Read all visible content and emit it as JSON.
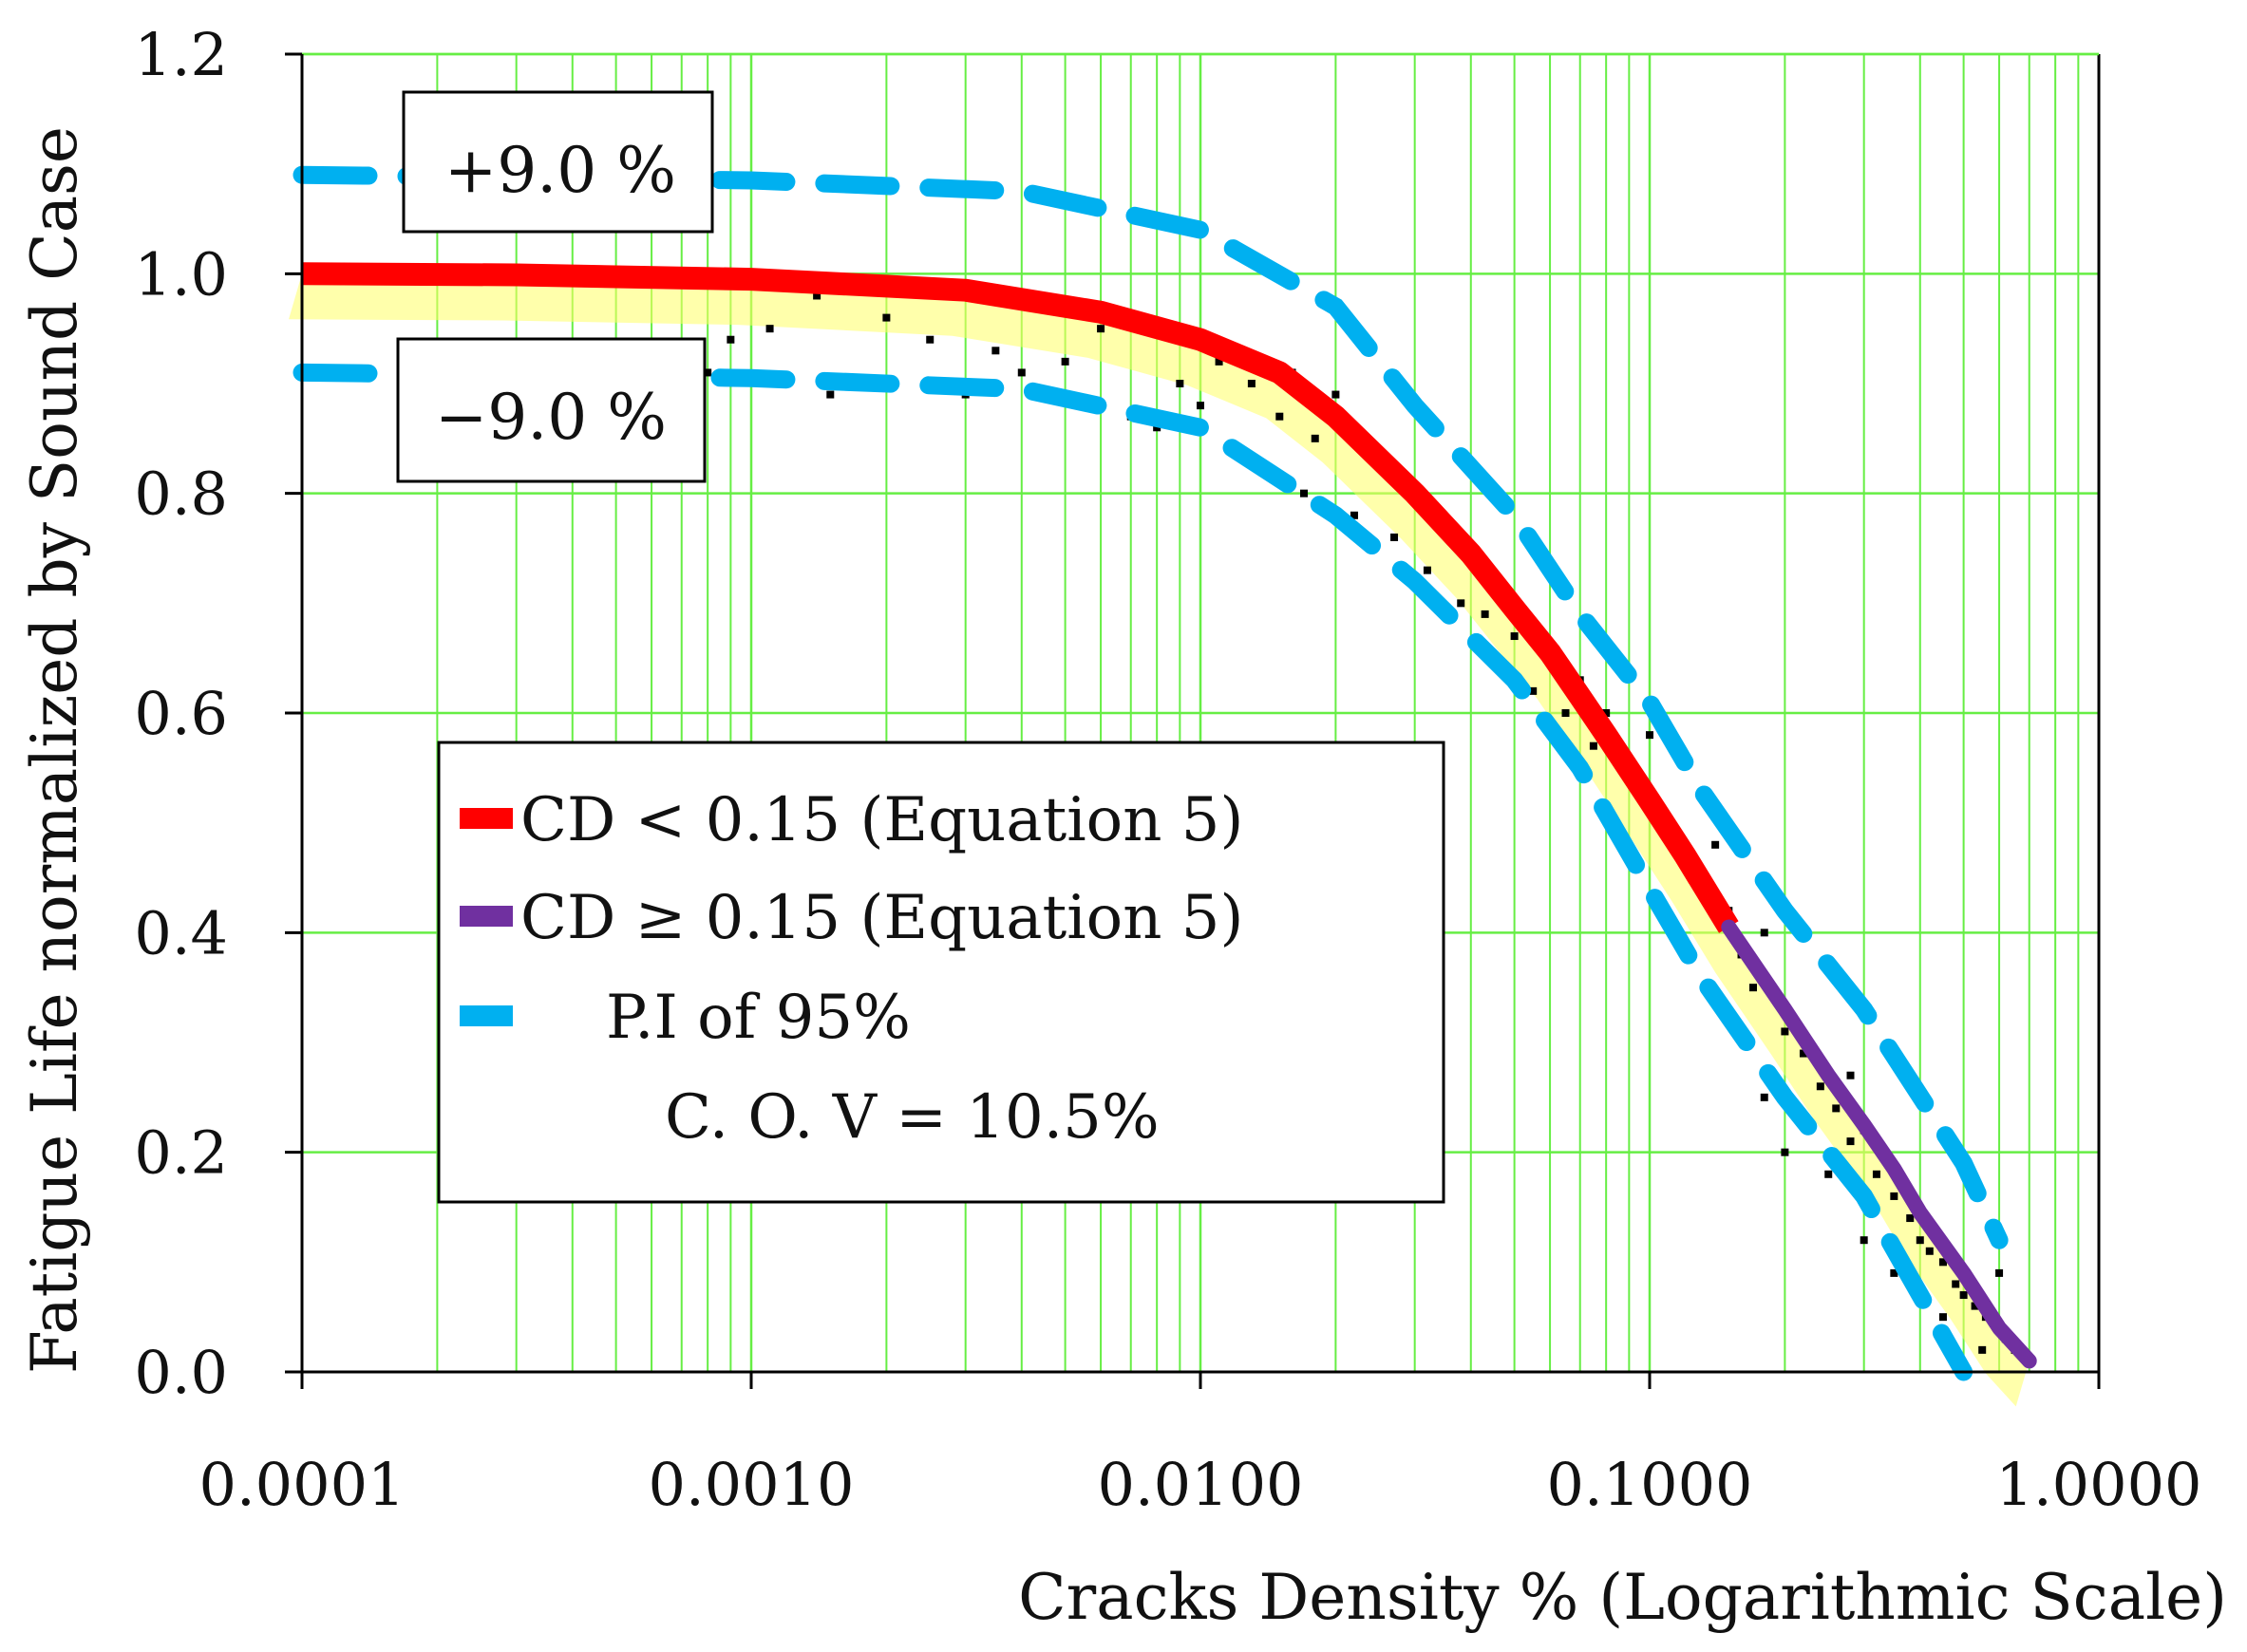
{
  "chart_data": {
    "type": "scatter",
    "title": "",
    "xlabel": "Cracks Density % (Logarithmic Scale)",
    "ylabel": "Fatigue Life normalized by Sound Case",
    "xscale": "log",
    "xlim": [
      0.0001,
      1.0
    ],
    "ylim": [
      0.0,
      1.2
    ],
    "grid": true,
    "x_tick_labels": [
      {
        "value": 0.0001,
        "label": "0.0001"
      },
      {
        "value": 0.001,
        "label": "0.0010"
      },
      {
        "value": 0.01,
        "label": "0.0100"
      },
      {
        "value": 0.1,
        "label": "0.1000"
      },
      {
        "value": 1.0,
        "label": "1.0000"
      }
    ],
    "y_tick_labels": [
      {
        "value": 0.0,
        "label": "0.0"
      },
      {
        "value": 0.2,
        "label": "0.2"
      },
      {
        "value": 0.4,
        "label": "0.4"
      },
      {
        "value": 0.6,
        "label": "0.6"
      },
      {
        "value": 0.8,
        "label": "0.8"
      },
      {
        "value": 1.0,
        "label": "1.0"
      },
      {
        "value": 1.2,
        "label": "1.2"
      }
    ],
    "annotations": [
      {
        "text": "+9.0 %",
        "anchor_x": 0.0001,
        "anchor_y": 1.09
      },
      {
        "text": "−9.0 %",
        "anchor_x": 0.0001,
        "anchor_y": 0.91
      }
    ],
    "legend": {
      "placement": "center-left",
      "entries": [
        {
          "label": "CD < 0.15 (Equation 5)",
          "color": "#ff0000",
          "style": "solid"
        },
        {
          "label": "CD ≥ 0.15 (Equation 5)",
          "color": "#7030a0",
          "style": "solid"
        },
        {
          "label": "P.I of 95%",
          "color": "#00b0f0",
          "style": "dashed"
        }
      ],
      "note": "C. O. V = 10.5%"
    },
    "series": [
      {
        "name": "CD < 0.15 (Equation 5)",
        "kind": "line",
        "color": "#ff0000",
        "x": [
          0.0001,
          0.0003,
          0.001,
          0.003,
          0.006,
          0.01,
          0.015,
          0.02,
          0.03,
          0.04,
          0.05,
          0.06,
          0.07,
          0.08,
          0.1,
          0.12,
          0.15
        ],
        "y": [
          1.0,
          0.999,
          0.995,
          0.985,
          0.965,
          0.94,
          0.91,
          0.87,
          0.8,
          0.745,
          0.695,
          0.655,
          0.615,
          0.58,
          0.52,
          0.47,
          0.405
        ]
      },
      {
        "name": "CD ≥ 0.15 (Equation 5)",
        "kind": "line",
        "color": "#7030a0",
        "x": [
          0.15,
          0.2,
          0.25,
          0.3,
          0.35,
          0.4,
          0.5,
          0.6,
          0.7
        ],
        "y": [
          0.405,
          0.33,
          0.27,
          0.225,
          0.185,
          0.145,
          0.09,
          0.04,
          0.01
        ]
      },
      {
        "name": "P.I of 95% (upper)",
        "kind": "dashed-line",
        "color": "#00b0f0",
        "x": [
          0.0001,
          0.001,
          0.004,
          0.01,
          0.02,
          0.03,
          0.05,
          0.07,
          0.1,
          0.13,
          0.2,
          0.3,
          0.5,
          0.6
        ],
        "y": [
          1.09,
          1.085,
          1.075,
          1.04,
          0.97,
          0.88,
          0.78,
          0.69,
          0.61,
          0.53,
          0.42,
          0.33,
          0.19,
          0.12
        ]
      },
      {
        "name": "P.I of 95% (lower)",
        "kind": "dashed-line",
        "color": "#00b0f0",
        "x": [
          0.0001,
          0.001,
          0.004,
          0.01,
          0.02,
          0.03,
          0.05,
          0.07,
          0.1,
          0.13,
          0.2,
          0.3,
          0.4,
          0.5
        ],
        "y": [
          0.91,
          0.905,
          0.895,
          0.86,
          0.78,
          0.72,
          0.63,
          0.55,
          0.44,
          0.36,
          0.25,
          0.16,
          0.07,
          0.0
        ]
      },
      {
        "name": "Data points",
        "kind": "scatter",
        "color": "#000000",
        "points": [
          [
            0.0009,
            0.94
          ],
          [
            0.0011,
            0.95
          ],
          [
            0.0014,
            0.98
          ],
          [
            0.0015,
            0.89
          ],
          [
            0.0008,
            0.91
          ],
          [
            0.002,
            0.96
          ],
          [
            0.0025,
            0.94
          ],
          [
            0.003,
            0.89
          ],
          [
            0.0035,
            0.93
          ],
          [
            0.004,
            0.91
          ],
          [
            0.005,
            0.92
          ],
          [
            0.006,
            0.95
          ],
          [
            0.007,
            0.87
          ],
          [
            0.008,
            0.86
          ],
          [
            0.009,
            0.9
          ],
          [
            0.01,
            0.88
          ],
          [
            0.011,
            0.92
          ],
          [
            0.012,
            0.84
          ],
          [
            0.013,
            0.9
          ],
          [
            0.014,
            0.82
          ],
          [
            0.015,
            0.87
          ],
          [
            0.016,
            0.91
          ],
          [
            0.017,
            0.8
          ],
          [
            0.018,
            0.85
          ],
          [
            0.02,
            0.89
          ],
          [
            0.022,
            0.78
          ],
          [
            0.025,
            0.83
          ],
          [
            0.027,
            0.76
          ],
          [
            0.03,
            0.8
          ],
          [
            0.032,
            0.73
          ],
          [
            0.035,
            0.77
          ],
          [
            0.038,
            0.7
          ],
          [
            0.04,
            0.74
          ],
          [
            0.043,
            0.69
          ],
          [
            0.045,
            0.72
          ],
          [
            0.05,
            0.67
          ],
          [
            0.055,
            0.62
          ],
          [
            0.06,
            0.65
          ],
          [
            0.065,
            0.6
          ],
          [
            0.07,
            0.63
          ],
          [
            0.075,
            0.57
          ],
          [
            0.08,
            0.6
          ],
          [
            0.09,
            0.55
          ],
          [
            0.1,
            0.58
          ],
          [
            0.11,
            0.5
          ],
          [
            0.12,
            0.47
          ],
          [
            0.13,
            0.44
          ],
          [
            0.14,
            0.48
          ],
          [
            0.15,
            0.42
          ],
          [
            0.16,
            0.38
          ],
          [
            0.17,
            0.35
          ],
          [
            0.18,
            0.4
          ],
          [
            0.2,
            0.31
          ],
          [
            0.22,
            0.29
          ],
          [
            0.24,
            0.26
          ],
          [
            0.26,
            0.24
          ],
          [
            0.28,
            0.21
          ],
          [
            0.3,
            0.22
          ],
          [
            0.32,
            0.18
          ],
          [
            0.35,
            0.16
          ],
          [
            0.38,
            0.14
          ],
          [
            0.4,
            0.12
          ],
          [
            0.42,
            0.11
          ],
          [
            0.45,
            0.1
          ],
          [
            0.48,
            0.08
          ],
          [
            0.5,
            0.07
          ],
          [
            0.53,
            0.06
          ],
          [
            0.56,
            0.05
          ],
          [
            0.6,
            0.04
          ],
          [
            0.62,
            0.03
          ],
          [
            0.65,
            0.02
          ],
          [
            0.3,
            0.12
          ],
          [
            0.35,
            0.09
          ],
          [
            0.25,
            0.18
          ],
          [
            0.2,
            0.2
          ],
          [
            0.45,
            0.05
          ],
          [
            0.55,
            0.02
          ],
          [
            0.6,
            0.09
          ],
          [
            0.18,
            0.25
          ],
          [
            0.28,
            0.27
          ]
        ]
      }
    ]
  },
  "colors": {
    "grid": "#66ee44",
    "axis": "#000000",
    "band": "#ffff66"
  }
}
